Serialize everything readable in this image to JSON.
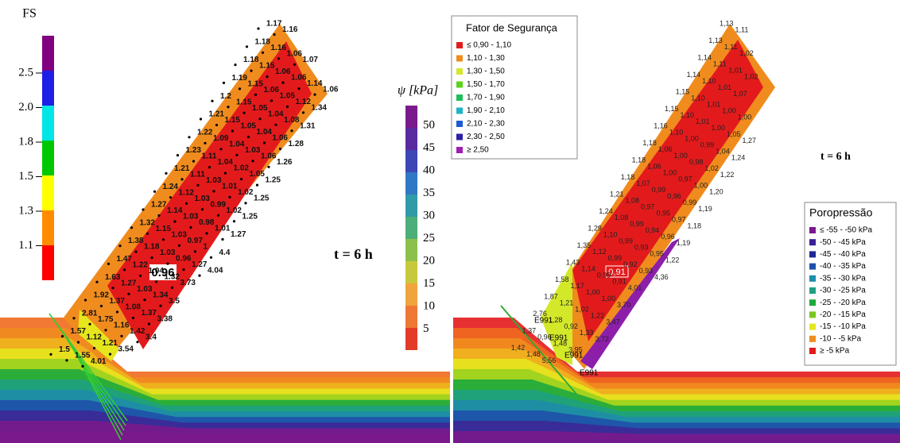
{
  "left_panel": {
    "fs_legend": {
      "title": "FS",
      "ticks": [
        "2.5",
        "2.0",
        "1.8",
        "1.5",
        "1.3",
        "1.1"
      ]
    },
    "psi_legend": {
      "title": "ψ [kPa]",
      "ticks": [
        "50",
        "45",
        "40",
        "35",
        "30",
        "25",
        "20",
        "15",
        "10",
        "5"
      ]
    },
    "time_label": "t = 6 h",
    "critical_label": "0.96",
    "grid_rows": [
      [
        "1.17",
        "1.16"
      ],
      [
        "1.18",
        "1.16",
        "1.06",
        "1.07"
      ],
      [
        "1.18",
        "1.15",
        "1.06",
        "1.06",
        "1.14",
        "1.06"
      ],
      [
        "1.19",
        "1.15",
        "1.06",
        "1.05",
        "1.12",
        "1.34"
      ],
      [
        "1.2",
        "1.15",
        "1.05",
        "1.04",
        "1.08",
        "1.31"
      ],
      [
        "1.21",
        "1.15",
        "1.05",
        "1.04",
        "1.06",
        "1.28"
      ],
      [
        "1.22",
        "1.09",
        "1.04",
        "1.03",
        "1.06",
        "1.26"
      ],
      [
        "1.23",
        "1.11",
        "1.04",
        "1.02",
        "1.05",
        "1.25"
      ],
      [
        "1.21",
        "1.11",
        "1.03",
        "1.01",
        "1.02",
        "1.25"
      ],
      [
        "1.24",
        "1.12",
        "1.03",
        "0.99",
        "1.02",
        "1.25"
      ],
      [
        "1.27",
        "1.14",
        "1.03",
        "0.98",
        "1.01",
        "1.27"
      ],
      [
        "1.32",
        "1.15",
        "1.03",
        "0.97",
        "1",
        "4.4"
      ],
      [
        "1.38",
        "1.18",
        "1.03",
        "0.96",
        "1.27",
        "4.04"
      ],
      [
        "1.47",
        "1.22",
        "1.04",
        "1.32",
        "3.73"
      ],
      [
        "1.63",
        "1.27",
        "1.03",
        "1.34",
        "3.5"
      ],
      [
        "1.92",
        "1.37",
        "1.08",
        "1.37",
        "3.38"
      ],
      [
        "2.81",
        "1.75",
        "1.16",
        "1.42",
        "3.4"
      ],
      [
        "1.57",
        "1.12",
        "1.21",
        "3.54"
      ],
      [
        "1.5",
        "1.55",
        "4.01"
      ]
    ]
  },
  "right_panel": {
    "fs_legend": {
      "title": "Fator de Segurança",
      "items": [
        {
          "label": "≤ 0,90 - 1,10",
          "color": "#e31a1c"
        },
        {
          "label": "1,10 - 1,30",
          "color": "#f08c1e"
        },
        {
          "label": "1,30 - 1,50",
          "color": "#d4e82a"
        },
        {
          "label": "1,50 - 1,70",
          "color": "#5ad41e"
        },
        {
          "label": "1,70 - 1,90",
          "color": "#1ebf5a"
        },
        {
          "label": "1,90 - 2,10",
          "color": "#1eb4c8"
        },
        {
          "label": "2,10 - 2,30",
          "color": "#1e5ad2"
        },
        {
          "label": "2,30 - 2,50",
          "color": "#2d1eaa"
        },
        {
          "label": "≥ 2,50",
          "color": "#a01eb4"
        }
      ]
    },
    "pore_legend": {
      "title": "Poropressão",
      "items": [
        {
          "label": "≤ -55 - -50 kPa",
          "color": "#7a1a8c"
        },
        {
          "label": "-50 - -45 kPa",
          "color": "#3c1e96"
        },
        {
          "label": "-45 - -40 kPa",
          "color": "#1e2896"
        },
        {
          "label": "-40 - -35 kPa",
          "color": "#1e50aa"
        },
        {
          "label": "-35 - -30 kPa",
          "color": "#1e8caa"
        },
        {
          "label": "-30 - -25 kPa",
          "color": "#1ea082"
        },
        {
          "label": "-25 - -20 kPa",
          "color": "#1eaa3c"
        },
        {
          "label": "-20 - -15 kPa",
          "color": "#78c81e"
        },
        {
          "label": "-15 - -10 kPa",
          "color": "#e6e61e"
        },
        {
          "label": "-10 - -5 kPa",
          "color": "#f08c1e"
        },
        {
          "label": "≥ -5 kPa",
          "color": "#e31a1c"
        }
      ]
    },
    "time_label": "t = 6 h",
    "critical_label": "0,91",
    "element_labels": [
      "E991",
      "E991",
      "E991",
      "E991"
    ],
    "grid_rows": [
      [
        "1,13",
        "1,11"
      ],
      [
        "1,13",
        "1,11",
        "1,02"
      ],
      [
        "1,14",
        "1,11",
        "1,01",
        "1,02"
      ],
      [
        "1,14",
        "1,10",
        "1,01",
        "1,07"
      ],
      [
        "1,15",
        "1,10",
        "1,01",
        "1,00",
        "1,00"
      ],
      [
        "1,15",
        "1,10",
        "1,01",
        "1,00",
        "1,05",
        "1,27"
      ],
      [
        "1,16",
        "1,10",
        "1,00",
        "0,99",
        "1,04",
        "1,24"
      ],
      [
        "1,18",
        "1,06",
        "1,00",
        "0,98",
        "1,02",
        "1,22"
      ],
      [
        "1,18",
        "1,06",
        "1,00",
        "0,97",
        "1,00",
        "1,20"
      ],
      [
        "1,18",
        "1,07",
        "0,99",
        "0,96",
        "0,99",
        "1,19"
      ],
      [
        "1,21",
        "1,08",
        "0,97",
        "0,95",
        "0,97",
        "1,18"
      ],
      [
        "1,24",
        "1,08",
        "0,99",
        "0,94",
        "0,96",
        "1,19"
      ],
      [
        "1,29",
        "1,10",
        "0,99",
        "0,93",
        "0,95",
        "1,22"
      ],
      [
        "1,35",
        "1,12",
        "0,99",
        "0,92",
        "0,93",
        "4,36"
      ],
      [
        "1,43",
        "1,14",
        "0,99",
        "0,91",
        "4,01"
      ],
      [
        "1,58",
        "1,17",
        "1,00",
        "1,00",
        "3,70"
      ],
      [
        "1,87",
        "1,21",
        "1,02",
        "1,22",
        "3,47"
      ],
      [
        "2,76",
        "1,28",
        "0,92",
        "1,33",
        "3,72"
      ],
      [
        "1,37",
        "0,96",
        "1,48",
        "3,95"
      ],
      [
        "1,42",
        "1,48",
        "5,56"
      ]
    ]
  }
}
